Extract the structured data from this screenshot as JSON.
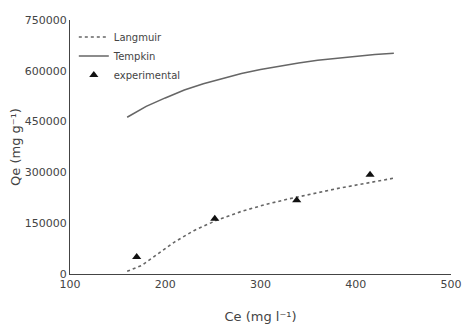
{
  "chart_data": {
    "type": "line",
    "xlabel": "Ce (mg l⁻¹)",
    "ylabel": "Qe (mg g⁻¹)",
    "xlim": [
      100,
      500
    ],
    "ylim": [
      0,
      750000
    ],
    "xticks": [
      100,
      200,
      300,
      400,
      500
    ],
    "yticks": [
      0,
      150000,
      300000,
      450000,
      600000,
      750000
    ],
    "grid": false,
    "legend": "upper left",
    "series": [
      {
        "name": "Langmuir",
        "type": "line",
        "line_style": "dotted",
        "color": "#666666",
        "x": [
          160,
          175,
          190,
          210,
          230,
          255,
          280,
          305,
          330,
          355,
          380,
          405,
          425,
          440
        ],
        "values": [
          8000,
          25000,
          55000,
          95000,
          128000,
          160000,
          185000,
          205000,
          222000,
          238000,
          252000,
          265000,
          275000,
          283000
        ]
      },
      {
        "name": "Tempkin",
        "type": "line",
        "line_style": "solid",
        "color": "#666666",
        "x": [
          160,
          180,
          200,
          220,
          240,
          260,
          280,
          300,
          320,
          340,
          360,
          380,
          400,
          420,
          440
        ],
        "values": [
          463000,
          495000,
          520000,
          543000,
          562000,
          578000,
          592000,
          604000,
          614000,
          623000,
          631000,
          637000,
          643000,
          648000,
          652000
        ]
      },
      {
        "name": "experimental",
        "type": "scatter",
        "marker": "triangle-up",
        "color": "#111111",
        "x": [
          170,
          252,
          338,
          415
        ],
        "values": [
          50000,
          163000,
          218000,
          293000
        ]
      }
    ]
  }
}
